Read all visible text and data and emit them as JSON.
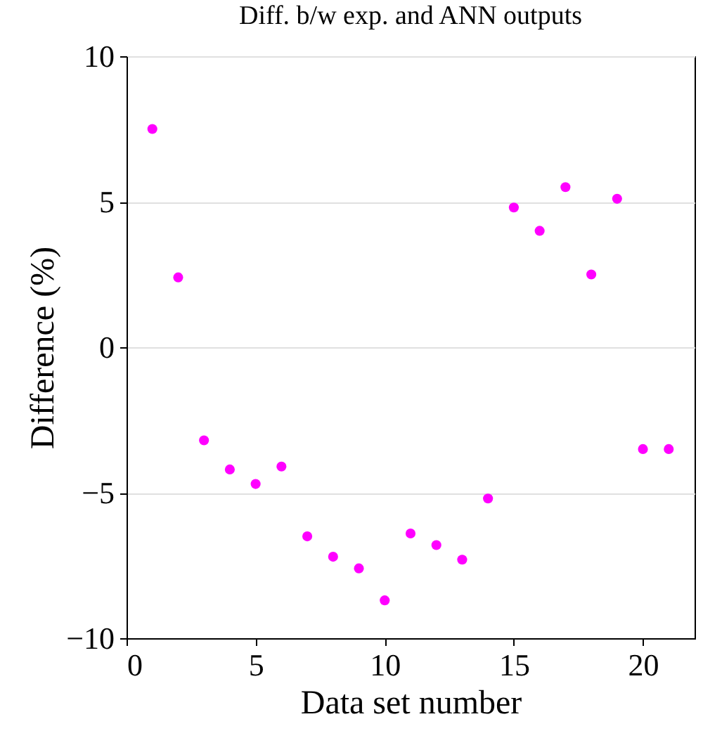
{
  "chart_data": {
    "type": "scatter",
    "title": "Diff. b/w exp. and ANN outputs",
    "xlabel": "Data set number",
    "ylabel": "Difference (%)",
    "x": [
      1,
      2,
      3,
      4,
      5,
      6,
      7,
      8,
      9,
      10,
      11,
      12,
      13,
      14,
      15,
      16,
      17,
      18,
      19,
      20,
      21
    ],
    "series": [
      {
        "color": "#ff00ff",
        "values": [
          7.5,
          2.4,
          -3.2,
          -4.2,
          -4.7,
          -4.1,
          -6.5,
          -7.2,
          -7.6,
          -8.7,
          -6.4,
          -6.8,
          -7.3,
          -5.2,
          4.8,
          4.0,
          5.5,
          2.5,
          5.1,
          -3.5,
          -3.5
        ]
      }
    ],
    "xlim": [
      0,
      22
    ],
    "xticks": [
      0,
      5,
      10,
      15,
      20
    ],
    "ylim": [
      -10,
      10
    ],
    "yticks": [
      -10,
      -5,
      0,
      5,
      10
    ],
    "grid": "y",
    "marker": "circle"
  }
}
